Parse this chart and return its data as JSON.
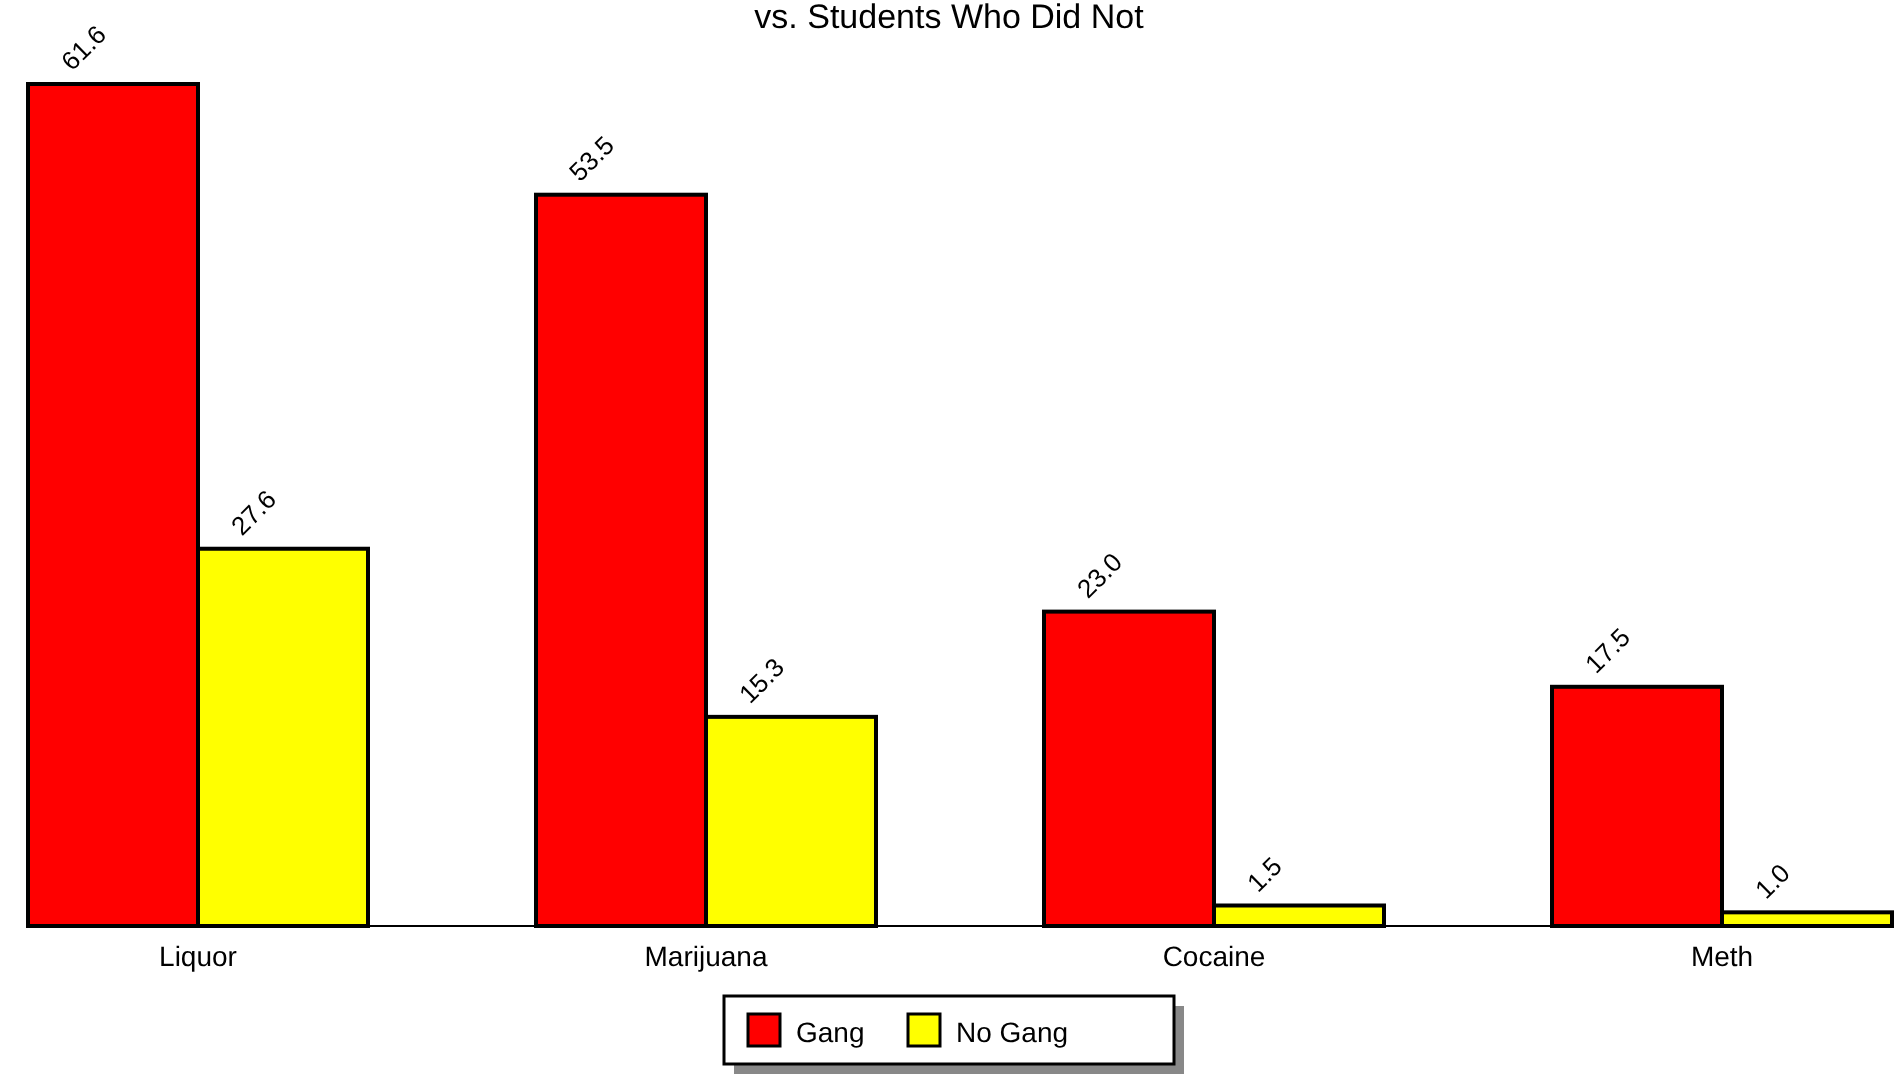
{
  "chart_data": {
    "type": "bar",
    "title": "vs. Students Who Did Not",
    "categories": [
      "Liquor",
      "Marijuana",
      "Cocaine",
      "Meth"
    ],
    "series": [
      {
        "name": "Gang",
        "color": "#ff0000",
        "values": [
          61.6,
          53.5,
          23.0,
          17.5
        ],
        "value_labels": [
          "61.6",
          "53.5",
          "23.0",
          "17.5"
        ]
      },
      {
        "name": "No Gang",
        "color": "#ffff00",
        "values": [
          27.6,
          15.3,
          1.5,
          1.0
        ],
        "value_labels": [
          "27.6",
          "15.3",
          "1.5",
          "1.0"
        ]
      }
    ],
    "legend": "bottom",
    "grid": false
  }
}
